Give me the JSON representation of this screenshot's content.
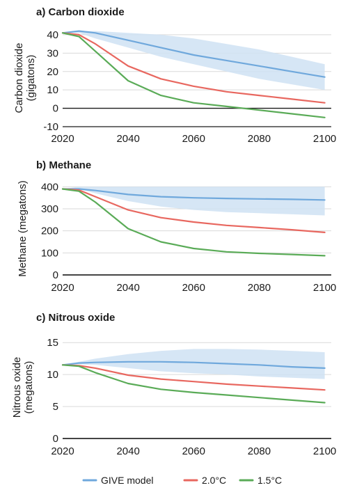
{
  "colors": {
    "give": "#6fa8dc",
    "give_band": "#cfe2f3",
    "two_c": "#e8675f",
    "one_five_c": "#5aab57",
    "axis": "#1a1a1a",
    "grid": "#d9d9d9"
  },
  "legend": {
    "items": [
      {
        "label": "GIVE model",
        "series": "give"
      },
      {
        "label": "2.0°C",
        "series": "two_c"
      },
      {
        "label": "1.5°C",
        "series": "one_five_c"
      }
    ]
  },
  "chart_data": [
    {
      "type": "line",
      "title": "a)  Carbon dioxide",
      "ylabel_lines": [
        "Carbon dioxide",
        "(gigatons)"
      ],
      "xlim": [
        2020,
        2102
      ],
      "ylim": [
        -10,
        43
      ],
      "xticks": [
        2020,
        2040,
        2060,
        2080,
        2100
      ],
      "yticks": [
        40,
        30,
        20,
        10,
        0,
        -10
      ],
      "zero_line": true,
      "grid": "horizontal",
      "series": [
        {
          "key": "give",
          "x": [
            2020,
            2025,
            2030,
            2040,
            2050,
            2060,
            2070,
            2080,
            2090,
            2100
          ],
          "y": [
            41,
            42,
            41,
            37,
            33,
            29,
            26,
            23,
            20,
            17
          ],
          "band_low": [
            41,
            41,
            38,
            33,
            28,
            24,
            20,
            16,
            13,
            10
          ],
          "band_high": [
            41,
            42,
            42,
            41,
            40,
            38,
            35,
            32,
            28,
            24
          ]
        },
        {
          "key": "two_c",
          "x": [
            2020,
            2025,
            2030,
            2040,
            2050,
            2060,
            2070,
            2080,
            2090,
            2100
          ],
          "y": [
            41,
            40,
            35,
            23,
            16,
            12,
            9,
            7,
            5,
            3
          ]
        },
        {
          "key": "one_five_c",
          "x": [
            2020,
            2025,
            2030,
            2040,
            2050,
            2060,
            2070,
            2080,
            2090,
            2100
          ],
          "y": [
            41,
            39,
            31,
            15,
            7,
            3,
            1,
            -1,
            -3,
            -5
          ]
        }
      ]
    },
    {
      "type": "line",
      "title": "b)  Methane",
      "ylabel_lines": [
        "Methane (megatons)"
      ],
      "xlim": [
        2020,
        2102
      ],
      "ylim": [
        0,
        420
      ],
      "xticks": [
        2020,
        2040,
        2060,
        2080,
        2100
      ],
      "yticks": [
        400,
        300,
        200,
        100,
        0
      ],
      "zero_line": false,
      "grid": "horizontal",
      "series": [
        {
          "key": "give",
          "x": [
            2020,
            2025,
            2030,
            2040,
            2050,
            2060,
            2070,
            2080,
            2090,
            2100
          ],
          "y": [
            390,
            390,
            383,
            365,
            355,
            350,
            347,
            345,
            343,
            340
          ],
          "band_low": [
            390,
            390,
            370,
            335,
            310,
            295,
            285,
            280,
            275,
            270
          ],
          "band_high": [
            390,
            400,
            400,
            400,
            400,
            400,
            400,
            400,
            400,
            400
          ]
        },
        {
          "key": "two_c",
          "x": [
            2020,
            2025,
            2030,
            2040,
            2050,
            2060,
            2070,
            2080,
            2090,
            2100
          ],
          "y": [
            390,
            385,
            355,
            295,
            260,
            240,
            225,
            215,
            205,
            193
          ]
        },
        {
          "key": "one_five_c",
          "x": [
            2020,
            2025,
            2030,
            2040,
            2050,
            2060,
            2070,
            2080,
            2090,
            2100
          ],
          "y": [
            390,
            380,
            330,
            210,
            150,
            120,
            105,
            98,
            93,
            87
          ]
        }
      ]
    },
    {
      "type": "line",
      "title": "c) Nitrous oxide",
      "ylabel_lines": [
        "Nitrous oxide",
        "(megatons)"
      ],
      "xlim": [
        2020,
        2102
      ],
      "ylim": [
        0,
        16
      ],
      "xticks": [
        2020,
        2040,
        2060,
        2080,
        2100
      ],
      "yticks": [
        15,
        10,
        5,
        0
      ],
      "zero_line": false,
      "grid": "horizontal",
      "series": [
        {
          "key": "give",
          "x": [
            2020,
            2025,
            2030,
            2040,
            2050,
            2060,
            2070,
            2080,
            2090,
            2100
          ],
          "y": [
            11.5,
            11.8,
            11.9,
            12.0,
            12.0,
            11.9,
            11.7,
            11.5,
            11.2,
            11.0
          ],
          "band_low": [
            11.5,
            11.6,
            11.5,
            11.0,
            10.5,
            10.2,
            10.0,
            9.7,
            9.5,
            9.3
          ],
          "band_high": [
            11.5,
            12.0,
            12.5,
            13.2,
            13.7,
            14.0,
            14.0,
            13.9,
            13.7,
            13.5
          ]
        },
        {
          "key": "two_c",
          "x": [
            2020,
            2025,
            2030,
            2040,
            2050,
            2060,
            2070,
            2080,
            2090,
            2100
          ],
          "y": [
            11.5,
            11.4,
            11.0,
            9.9,
            9.3,
            8.9,
            8.5,
            8.2,
            7.9,
            7.6
          ]
        },
        {
          "key": "one_five_c",
          "x": [
            2020,
            2025,
            2030,
            2040,
            2050,
            2060,
            2070,
            2080,
            2090,
            2100
          ],
          "y": [
            11.5,
            11.3,
            10.3,
            8.6,
            7.7,
            7.2,
            6.8,
            6.4,
            6.0,
            5.6
          ]
        }
      ]
    }
  ]
}
